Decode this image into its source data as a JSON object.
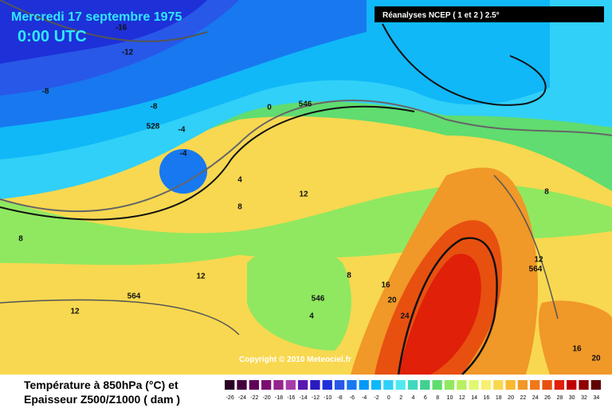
{
  "header": {
    "date": "Mercredi 17 septembre 1975",
    "time": "0:00 UTC",
    "source": "Réanalyses NCEP ( 1 et 2 ) 2.5°"
  },
  "map": {
    "copyright": "Copyright © 2010 Meteociel.fr",
    "labels": [
      "-16",
      "-12",
      "-8",
      "-8",
      "528",
      "-4",
      "-4",
      "0",
      "546",
      "4",
      "8",
      "12",
      "8",
      "12",
      "12",
      "564",
      "8",
      "16",
      "20",
      "546",
      "4",
      "24",
      "8",
      "12",
      "564",
      "16",
      "20"
    ]
  },
  "legend": {
    "line1": "Température à 850hPa (°C) et",
    "line2": "Epaisseur Z500/Z1000 ( dam )",
    "scale": {
      "values": [
        -26,
        -24,
        -22,
        -20,
        -18,
        -16,
        -14,
        -12,
        -10,
        -8,
        -6,
        -4,
        -2,
        0,
        2,
        4,
        6,
        8,
        10,
        12,
        14,
        16,
        18,
        20,
        22,
        24,
        26,
        28,
        30,
        32,
        34
      ],
      "colors": [
        "#2a0026",
        "#45003f",
        "#600059",
        "#7a0f72",
        "#94258c",
        "#a83ca8",
        "#5a18b0",
        "#2a1ac0",
        "#1e30d8",
        "#2858e8",
        "#1878f0",
        "#0098f8",
        "#10b8f8",
        "#30d0f8",
        "#50e8f0",
        "#40d8c0",
        "#40d090",
        "#60dc70",
        "#90e860",
        "#b8f060",
        "#e0f870",
        "#f8f070",
        "#f8d850",
        "#f8b830",
        "#f09828",
        "#f07818",
        "#e85010",
        "#e02008",
        "#c00000",
        "#900000",
        "#600000"
      ]
    }
  }
}
